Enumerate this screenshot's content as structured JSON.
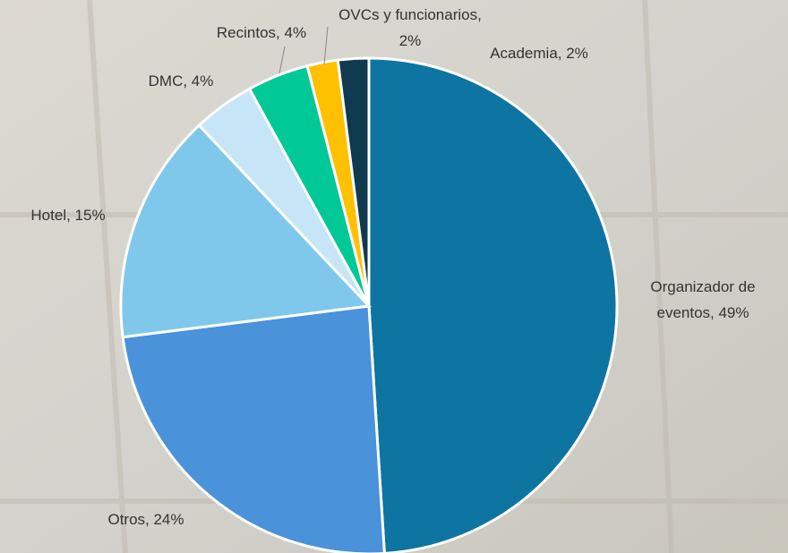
{
  "chart_data": {
    "type": "pie",
    "categories": [
      "Organizador de\neventos, 49%",
      "Otros, 24%",
      "Hotel, 15%",
      "DMC, 4%",
      "Recintos, 4%",
      "OVCs y funcionarios,\n2%",
      "Academia, 2%"
    ],
    "values": [
      49,
      24,
      15,
      4,
      4,
      2,
      2
    ],
    "colors": [
      "#0e74a2",
      "#4a92da",
      "#80c8eb",
      "#c6e5f6",
      "#00c896",
      "#ffc000",
      "#0f3a50"
    ]
  }
}
